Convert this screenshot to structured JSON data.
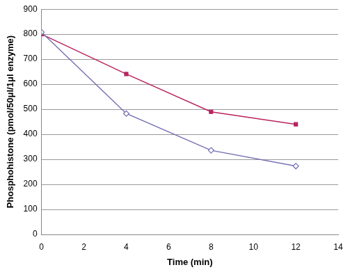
{
  "chart_data": {
    "type": "line",
    "x_label": "Time (min)",
    "y_label": "Phosphohistone (pmol/50μl/1μl enzyme)",
    "x": [
      0,
      4,
      8,
      12
    ],
    "series": [
      {
        "color": "#7570b3",
        "marker": "diamond",
        "values": [
          808,
          483,
          336,
          273
        ]
      },
      {
        "color": "#b8245e",
        "marker": "square",
        "values": [
          800,
          641,
          490,
          440
        ]
      }
    ],
    "xlim": [
      0,
      14
    ],
    "xticks": [
      0,
      2,
      4,
      6,
      8,
      10,
      12,
      14
    ],
    "ylim": [
      0,
      900
    ],
    "yticks": [
      0,
      100,
      200,
      300,
      400,
      500,
      600,
      700,
      800,
      900
    ],
    "grid": true
  }
}
